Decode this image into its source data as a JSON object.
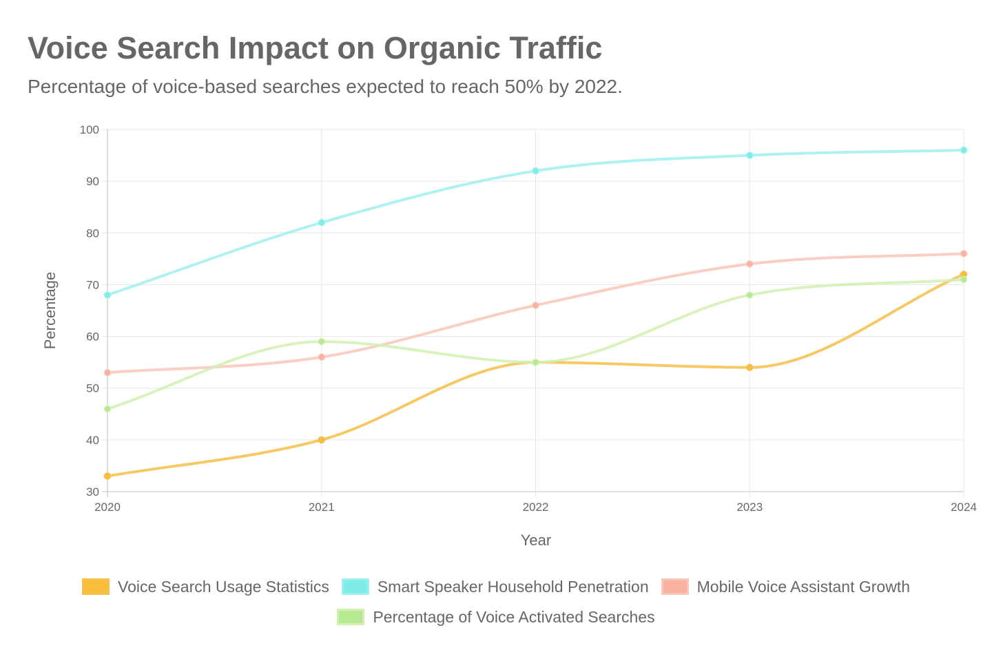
{
  "header": {
    "title": "Voice Search Impact on Organic Traffic",
    "subtitle": "Percentage of voice-based searches expected to reach 50% by 2022."
  },
  "chart_data": {
    "type": "line",
    "x": [
      "2020",
      "2021",
      "2022",
      "2023",
      "2024"
    ],
    "xlabel": "Year",
    "ylabel": "Percentage",
    "ylim": [
      30,
      100
    ],
    "yticks": [
      30,
      40,
      50,
      60,
      70,
      80,
      90,
      100
    ],
    "grid": true,
    "legend_position": "bottom",
    "series": [
      {
        "name": "Voice Search Usage Statistics",
        "values": [
          33,
          40,
          55,
          54,
          72
        ],
        "color": "#f5c04a",
        "fill": "#f9bd3c"
      },
      {
        "name": "Smart Speaker Household Penetration",
        "values": [
          68,
          82,
          92,
          95,
          96
        ],
        "color": "#9fefef",
        "fill": "#80ece8"
      },
      {
        "name": "Mobile Voice Assistant Growth",
        "values": [
          53,
          56,
          66,
          74,
          76
        ],
        "color": "#f9c6ba",
        "fill": "#f9b29f"
      },
      {
        "name": "Percentage of Voice Activated Searches",
        "values": [
          46,
          59,
          55,
          68,
          71
        ],
        "color": "#d2f0b2",
        "fill": "#b7e992"
      }
    ]
  }
}
